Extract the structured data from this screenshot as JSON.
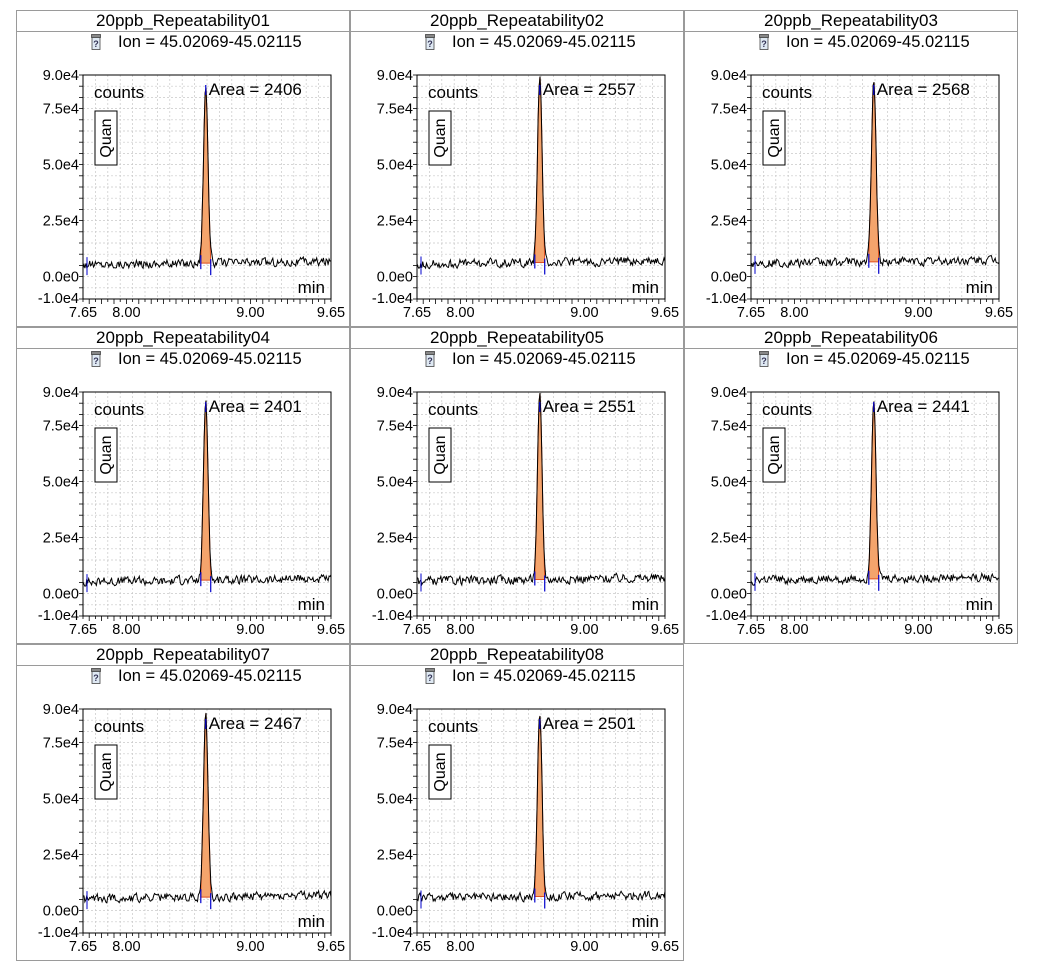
{
  "panels": [
    {
      "title": "20ppb_Repeatability01",
      "ion": "Ion = 45.02069-45.02115",
      "area": "Area = 2406",
      "peak_height": 79000
    },
    {
      "title": "20ppb_Repeatability02",
      "ion": "Ion = 45.02069-45.02115",
      "area": "Area = 2557",
      "peak_height": 83000
    },
    {
      "title": "20ppb_Repeatability03",
      "ion": "Ion = 45.02069-45.02115",
      "area": "Area = 2568",
      "peak_height": 82000
    },
    {
      "title": "20ppb_Repeatability04",
      "ion": "Ion = 45.02069-45.02115",
      "area": "Area = 2401",
      "peak_height": 81000
    },
    {
      "title": "20ppb_Repeatability05",
      "ion": "Ion = 45.02069-45.02115",
      "area": "Area = 2551",
      "peak_height": 82000
    },
    {
      "title": "20ppb_Repeatability06",
      "ion": "Ion = 45.02069-45.02115",
      "area": "Area = 2441",
      "peak_height": 81000
    },
    {
      "title": "20ppb_Repeatability07",
      "ion": "Ion = 45.02069-45.02115",
      "area": "Area = 2467",
      "peak_height": 82000
    },
    {
      "title": "20ppb_Repeatability08",
      "ion": "Ion = 45.02069-45.02115",
      "area": "Area = 2501",
      "peak_height": 83000
    }
  ],
  "labels": {
    "counts": "counts",
    "min": "min",
    "quan": "Quan"
  },
  "colors": {
    "trace": "#000000",
    "peak_fill": "#f4a46c",
    "peak_outline": "#e05020",
    "marker": "#0000cc",
    "grid": "#c8c8c8"
  },
  "chart_data": {
    "type": "line",
    "xlabel": "min",
    "ylabel": "counts",
    "xlim": [
      7.65,
      9.65
    ],
    "ylim": [
      -10000,
      90000
    ],
    "x_ticks": [
      "7.65",
      "8.00",
      "9.00",
      "9.65"
    ],
    "x_tick_values": [
      7.65,
      8.0,
      9.0,
      9.65
    ],
    "y_ticks": [
      "9.0e4",
      "7.5e4",
      "5.0e4",
      "2.5e4",
      "0.0e0",
      "-1.0e4"
    ],
    "y_tick_values": [
      90000,
      75000,
      50000,
      25000,
      0,
      -10000
    ],
    "peak_rt": 8.64,
    "peak_start": 8.6,
    "peak_end": 8.68,
    "baseline": 6000,
    "grid": true
  }
}
